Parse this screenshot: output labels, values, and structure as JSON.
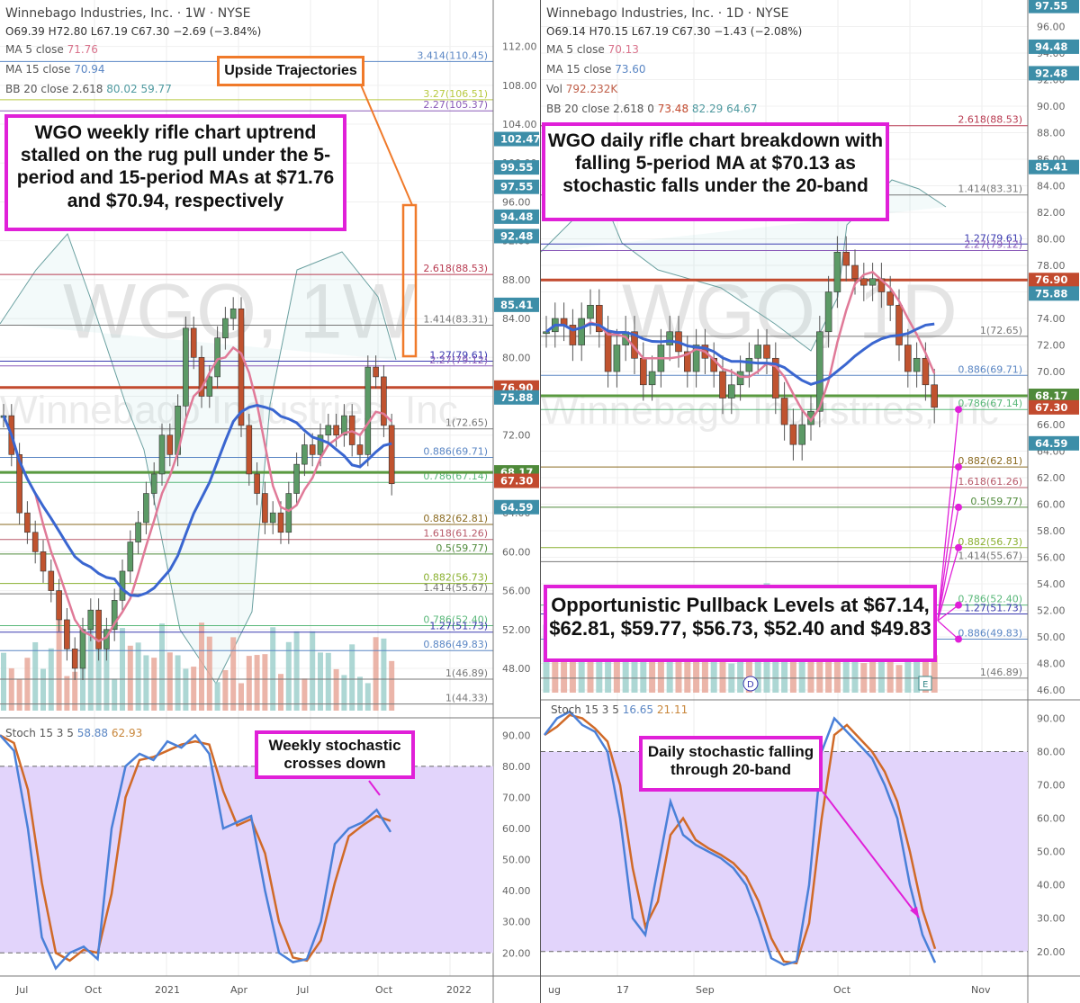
{
  "left": {
    "title": "Winnebago Industries, Inc. · 1W · NYSE",
    "ohlc": "O69.39 H72.80 L67.19 C67.30 −2.69 (−3.84%)",
    "ma5_label": "MA 5 close",
    "ma5_value": "71.76",
    "ma15_label": "MA 15 close",
    "ma15_value": "70.94",
    "bb_label": "BB 20 close 2.618",
    "bb_upper": "80.02",
    "bb_lower": "59.77",
    "watermark": "WGO, 1W",
    "watermark2": "Winnebago Industries, Inc",
    "annotation_main": "WGO weekly rifle chart uptrend stalled on the rug pull under the 5-period and 15-period MAs at $71.76 and $70.94, respectively",
    "annotation_upside": "Upside Trajectories",
    "annotation_stoch": "Weekly stochastic crosses down",
    "stoch_label": "Stoch 15 3 5",
    "stoch_k": "58.88",
    "stoch_d": "62.93",
    "x_labels": [
      "Jul",
      "Oct",
      "2021",
      "Apr",
      "Jul",
      "Oct",
      "2022"
    ]
  },
  "right": {
    "title": "Winnebago Industries, Inc. · 1D · NYSE",
    "ohlc": "O69.14 H70.15 L67.19 C67.30 −1.43 (−2.08%)",
    "ma5_label": "MA 5 close",
    "ma5_value": "70.13",
    "ma15_label": "MA 15 close",
    "ma15_value": "73.60",
    "vol_label": "Vol",
    "vol_value": "792.232K",
    "bb_label": "BB 20 close 2.618 0",
    "bb_mid": "73.48",
    "bb_upper": "82.29",
    "bb_lower": "64.67",
    "watermark": "WGO, 1D",
    "watermark2": "Winnebago Industries, Inc",
    "annotation_main": "WGO daily rifle chart breakdown with falling 5-period MA at $70.13 as stochastic falls under the 20-band",
    "annotation_pullback": "Opportunistic Pullback Levels at $67.14, $62.81, $59.77, $56.73, $52.40 and $49.83",
    "annotation_stoch": "Daily stochastic falling through 20-band",
    "stoch_label": "Stoch 15 3 5",
    "stoch_k": "16.65",
    "stoch_d": "21.11",
    "x_labels": [
      "ug",
      "17",
      "Sep",
      "Oct",
      "Nov"
    ],
    "event_markers": [
      "D",
      "E"
    ]
  },
  "chart_data": [
    {
      "type": "candlestick",
      "title": "Winnebago Industries, Inc. · 1W · NYSE",
      "ylim": [
        43,
        114
      ],
      "yticks": [
        48,
        52,
        56,
        60,
        64,
        68,
        72,
        76,
        80,
        84,
        88,
        92,
        96,
        100,
        104,
        108,
        112
      ],
      "price_tags": [
        {
          "v": 102.47,
          "c": "#3d8ea8"
        },
        {
          "v": 99.55,
          "c": "#3d8ea8"
        },
        {
          "v": 97.55,
          "c": "#3d8ea8"
        },
        {
          "v": 94.48,
          "c": "#3d8ea8"
        },
        {
          "v": 92.48,
          "c": "#3d8ea8"
        },
        {
          "v": 85.41,
          "c": "#3d8ea8"
        },
        {
          "v": 76.9,
          "c": "#c24a2e"
        },
        {
          "v": 75.88,
          "c": "#3d8ea8"
        },
        {
          "v": 68.17,
          "c": "#4f8a3a"
        },
        {
          "v": 67.3,
          "c": "#c24a2e"
        },
        {
          "v": 64.59,
          "c": "#3d8ea8"
        }
      ],
      "fib_levels": [
        {
          "label": "3.414(110.45)",
          "v": 110.45,
          "c": "#5a86c4"
        },
        {
          "label": "3.27(106.51)",
          "v": 106.51,
          "c": "#b8c940"
        },
        {
          "label": "2.27(105.37)",
          "v": 105.37,
          "c": "#8a5ab8"
        },
        {
          "label": "2.618(88.53)",
          "v": 88.53,
          "c": "#b83a50"
        },
        {
          "label": "1.414(83.31)",
          "v": 83.31,
          "c": "#777777"
        },
        {
          "label": "1.27(79.61)",
          "v": 79.61,
          "c": "#3a3ab0"
        },
        {
          "label": "2.27(79.12)",
          "v": 79.12,
          "c": "#8a5ab8"
        },
        {
          "label": "1(72.65)",
          "v": 72.65,
          "c": "#777777"
        },
        {
          "label": "0.886(69.71)",
          "v": 69.71,
          "c": "#5a86c4"
        },
        {
          "label": "0.786(67.14)",
          "v": 67.14,
          "c": "#5ab87a"
        },
        {
          "label": "0.882(62.81)",
          "v": 62.81,
          "c": "#8a6a20"
        },
        {
          "label": "1.618(61.26)",
          "v": 61.26,
          "c": "#b85a6a"
        },
        {
          "label": "0.5(59.77)",
          "v": 59.77,
          "c": "#4f8a3a"
        },
        {
          "label": "0.882(56.73)",
          "v": 56.73,
          "c": "#8ab030"
        },
        {
          "label": "1.414(55.67)",
          "v": 55.67,
          "c": "#777777"
        },
        {
          "label": "0.786(52.40)",
          "v": 52.4,
          "c": "#5ab87a"
        },
        {
          "label": "1.27(51.73)",
          "v": 51.73,
          "c": "#3a3ab0"
        },
        {
          "label": "0.886(49.83)",
          "v": 49.83,
          "c": "#5a86c4"
        },
        {
          "label": "1(46.89)",
          "v": 46.89,
          "c": "#777777"
        },
        {
          "label": "1(44.33)",
          "v": 44.33,
          "c": "#777777"
        }
      ],
      "ma5": 71.76,
      "ma15": 70.94,
      "bb_upper": 80.02,
      "bb_lower": 59.77,
      "last": {
        "open": 69.39,
        "high": 72.8,
        "low": 67.19,
        "close": 67.3
      },
      "stoch": {
        "k": 58.88,
        "d": 62.93,
        "ylim": [
          14,
          95
        ],
        "bands": [
          20,
          80
        ],
        "yticks": [
          20,
          30,
          40,
          50,
          60,
          70,
          80,
          90
        ]
      },
      "xlabels": [
        "Jul",
        "Oct",
        "2021",
        "Apr",
        "Jul",
        "Oct",
        "2022"
      ]
    },
    {
      "type": "candlestick",
      "title": "Winnebago Industries, Inc. · 1D · NYSE",
      "ylim": [
        45.8,
        98
      ],
      "yticks": [
        46,
        48,
        50,
        52,
        54,
        56,
        58,
        60,
        62,
        64,
        66,
        68,
        70,
        72,
        74,
        76,
        78,
        80,
        82,
        84,
        86,
        88,
        90,
        92,
        94,
        96
      ],
      "price_tags": [
        {
          "v": 97.55,
          "c": "#3d8ea8"
        },
        {
          "v": 94.48,
          "c": "#3d8ea8"
        },
        {
          "v": 92.48,
          "c": "#3d8ea8"
        },
        {
          "v": 85.41,
          "c": "#3d8ea8"
        },
        {
          "v": 76.9,
          "c": "#c24a2e"
        },
        {
          "v": 75.88,
          "c": "#3d8ea8"
        },
        {
          "v": 68.17,
          "c": "#4f8a3a"
        },
        {
          "v": 67.3,
          "c": "#c24a2e"
        },
        {
          "v": 64.59,
          "c": "#3d8ea8"
        }
      ],
      "fib_levels": [
        {
          "label": "2.618(88.53)",
          "v": 88.53,
          "c": "#b83a50"
        },
        {
          "label": "1.414(83.31)",
          "v": 83.31,
          "c": "#777777"
        },
        {
          "label": "1.27(79.61)",
          "v": 79.61,
          "c": "#3a3ab0"
        },
        {
          "label": "2.27(79.12)",
          "v": 79.12,
          "c": "#8a5ab8"
        },
        {
          "label": "1(72.65)",
          "v": 72.65,
          "c": "#777777"
        },
        {
          "label": "0.886(69.71)",
          "v": 69.71,
          "c": "#5a86c4"
        },
        {
          "label": "0.786(67.14)",
          "v": 67.14,
          "c": "#5ab87a"
        },
        {
          "label": "0.882(62.81)",
          "v": 62.81,
          "c": "#8a6a20"
        },
        {
          "label": "1.618(61.26)",
          "v": 61.26,
          "c": "#b85a6a"
        },
        {
          "label": "0.5(59.77)",
          "v": 59.77,
          "c": "#4f8a3a"
        },
        {
          "label": "0.882(56.73)",
          "v": 56.73,
          "c": "#8ab030"
        },
        {
          "label": "1.414(55.67)",
          "v": 55.67,
          "c": "#777777"
        },
        {
          "label": "0.786(52.40)",
          "v": 52.4,
          "c": "#5ab87a"
        },
        {
          "label": "1.27(51.73)",
          "v": 51.73,
          "c": "#3a3ab0"
        },
        {
          "label": "0.886(49.83)",
          "v": 49.83,
          "c": "#5a86c4"
        },
        {
          "label": "1(46.89)",
          "v": 46.89,
          "c": "#777777"
        }
      ],
      "pullback_levels": [
        67.14,
        62.81,
        59.77,
        56.73,
        52.4,
        49.83
      ],
      "ma5": 70.13,
      "ma15": 73.6,
      "bb_mid": 73.48,
      "bb_upper": 82.29,
      "bb_lower": 64.67,
      "volume": "792.232K",
      "last": {
        "open": 69.14,
        "high": 70.15,
        "low": 67.19,
        "close": 67.3
      },
      "stoch": {
        "k": 16.65,
        "d": 21.11,
        "ylim": [
          14,
          95
        ],
        "bands": [
          20,
          80
        ],
        "yticks": [
          20,
          30,
          40,
          50,
          60,
          70,
          80,
          90
        ]
      },
      "xlabels": [
        "ug",
        "17",
        "Sep",
        "Oct",
        "Nov"
      ]
    }
  ]
}
